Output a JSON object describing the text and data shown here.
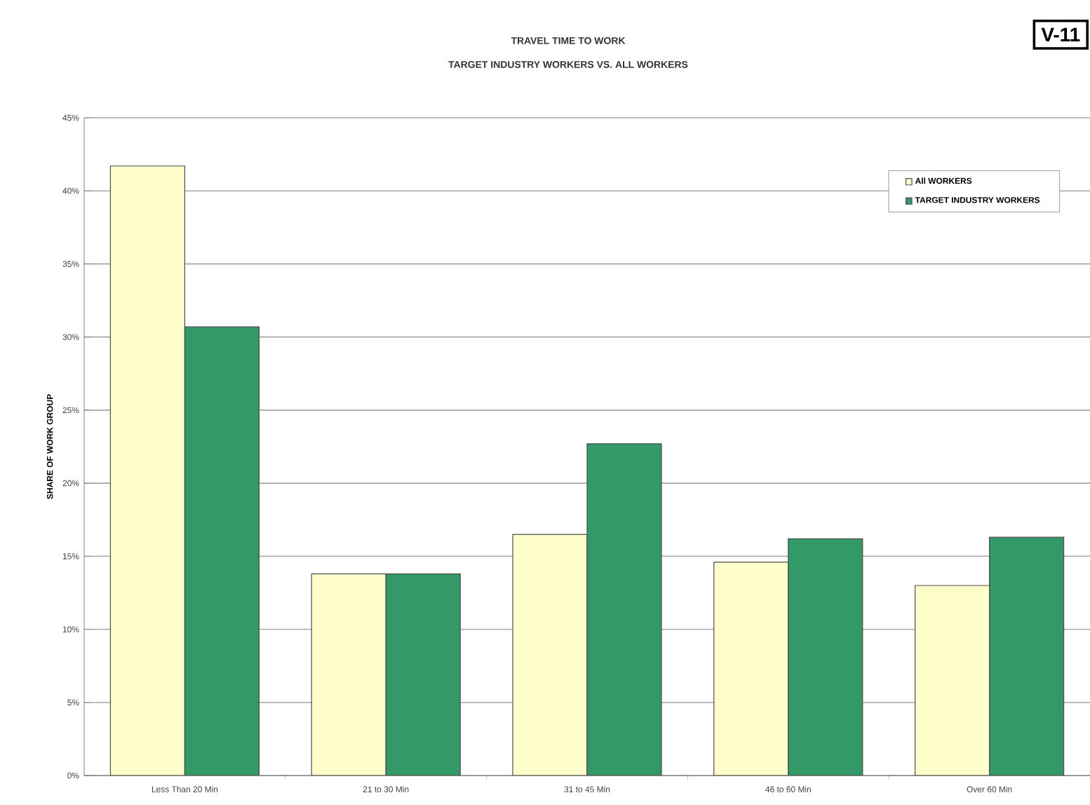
{
  "chart_data": {
    "type": "bar",
    "title": "TRAVEL TIME TO WORK",
    "subtitle": "TARGET INDUSTRY WORKERS VS. ALL WORKERS",
    "ylabel": "SHARE OF WORK GROUP",
    "annotations": [
      "V-11"
    ],
    "categories": [
      "Less Than 20 Min",
      "21 to 30 Min",
      "31 to 45 Min",
      "46 to 60 Min",
      "Over 60 Min"
    ],
    "series": [
      {
        "name": "All WORKERS",
        "color": "#ffffcc",
        "values": [
          41.7,
          13.8,
          16.5,
          14.6,
          13.0
        ]
      },
      {
        "name": "TARGET INDUSTRY WORKERS",
        "color": "#339966",
        "values": [
          30.7,
          13.8,
          22.7,
          16.2,
          16.3
        ]
      }
    ],
    "ylim": [
      0,
      45
    ],
    "yticks": [
      {
        "value": 0,
        "label": "0%"
      },
      {
        "value": 5,
        "label": "5%"
      },
      {
        "value": 10,
        "label": "10%"
      },
      {
        "value": 15,
        "label": "15%"
      },
      {
        "value": 20,
        "label": "20%"
      },
      {
        "value": 25,
        "label": "25%"
      },
      {
        "value": 30,
        "label": "30%"
      },
      {
        "value": 35,
        "label": "35%"
      },
      {
        "value": 40,
        "label": "40%"
      },
      {
        "value": 45,
        "label": "45%"
      }
    ],
    "grid": "y",
    "legend": "top right"
  }
}
